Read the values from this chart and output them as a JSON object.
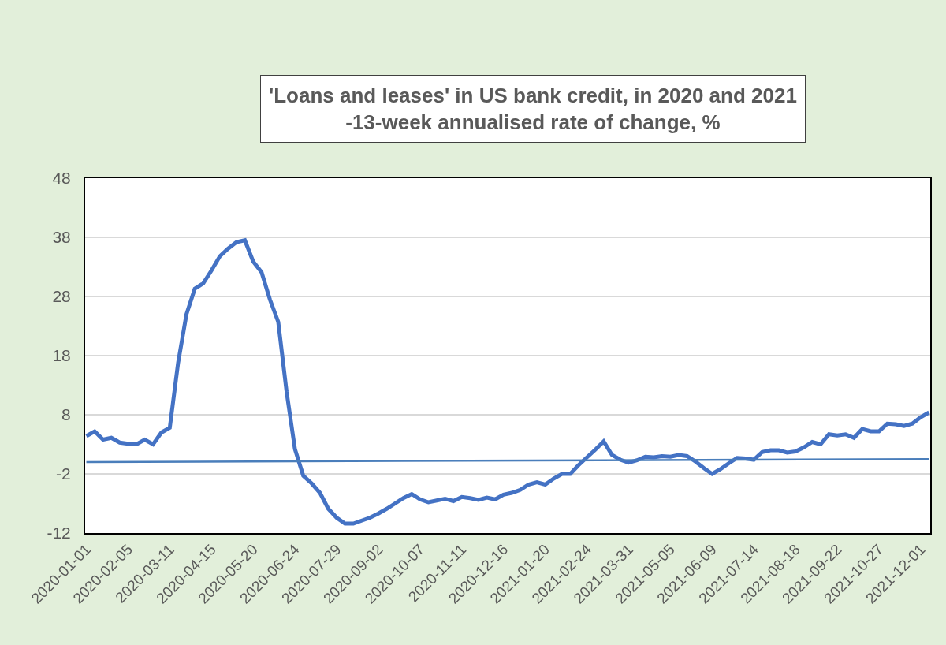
{
  "chart_data": {
    "type": "line",
    "title": "'Loans and leases' in US bank credit, in 2020 and 2021",
    "subtitle": "-13-week annualised rate of change, %",
    "x": [
      "2020-01-01",
      "2020-01-08",
      "2020-01-15",
      "2020-01-22",
      "2020-01-29",
      "2020-02-05",
      "2020-02-12",
      "2020-02-19",
      "2020-02-26",
      "2020-03-04",
      "2020-03-11",
      "2020-03-18",
      "2020-03-25",
      "2020-04-01",
      "2020-04-08",
      "2020-04-15",
      "2020-04-22",
      "2020-04-29",
      "2020-05-06",
      "2020-05-13",
      "2020-05-20",
      "2020-05-27",
      "2020-06-03",
      "2020-06-10",
      "2020-06-17",
      "2020-06-24",
      "2020-07-01",
      "2020-07-08",
      "2020-07-15",
      "2020-07-22",
      "2020-07-29",
      "2020-08-05",
      "2020-08-12",
      "2020-08-19",
      "2020-08-26",
      "2020-09-02",
      "2020-09-09",
      "2020-09-16",
      "2020-09-23",
      "2020-09-30",
      "2020-10-07",
      "2020-10-14",
      "2020-10-21",
      "2020-10-28",
      "2020-11-04",
      "2020-11-11",
      "2020-11-18",
      "2020-11-25",
      "2020-12-02",
      "2020-12-09",
      "2020-12-16",
      "2020-12-23",
      "2020-12-30",
      "2021-01-06",
      "2021-01-13",
      "2021-01-20",
      "2021-01-27",
      "2021-02-03",
      "2021-02-10",
      "2021-02-17",
      "2021-02-24",
      "2021-03-03",
      "2021-03-10",
      "2021-03-17",
      "2021-03-24",
      "2021-03-31",
      "2021-04-07",
      "2021-04-14",
      "2021-04-21",
      "2021-04-28",
      "2021-05-05",
      "2021-05-12",
      "2021-05-19",
      "2021-05-26",
      "2021-06-02",
      "2021-06-09",
      "2021-06-16",
      "2021-06-23",
      "2021-06-30",
      "2021-07-07",
      "2021-07-14",
      "2021-07-21",
      "2021-07-28",
      "2021-08-04",
      "2021-08-11",
      "2021-08-18",
      "2021-08-25",
      "2021-09-01",
      "2021-09-08",
      "2021-09-15",
      "2021-09-22",
      "2021-09-29",
      "2021-10-06",
      "2021-10-13",
      "2021-10-20",
      "2021-10-27",
      "2021-11-03",
      "2021-11-10",
      "2021-11-17",
      "2021-11-24",
      "2021-12-01",
      "2021-12-08"
    ],
    "series": [
      {
        "color": "#4472c4",
        "values": [
          4.4,
          5.2,
          3.8,
          4.1,
          3.3,
          3.1,
          3.0,
          3.8,
          3.0,
          5.0,
          5.8,
          16.8,
          25.0,
          29.3,
          30.2,
          32.4,
          34.8,
          36.1,
          37.2,
          37.5,
          33.9,
          32.1,
          27.5,
          23.7,
          11.9,
          2.2,
          -2.3,
          -3.6,
          -5.2,
          -7.9,
          -9.4,
          -10.4,
          -10.4,
          -9.9,
          -9.4,
          -8.7,
          -7.9,
          -7.0,
          -6.1,
          -5.4,
          -6.3,
          -6.8,
          -6.5,
          -6.2,
          -6.6,
          -5.9,
          -6.1,
          -6.4,
          -6.0,
          -6.3,
          -5.5,
          -5.2,
          -4.7,
          -3.8,
          -3.4,
          -3.8,
          -2.8,
          -2.0,
          -2.0,
          -0.5,
          0.8,
          2.1,
          3.5,
          1.2,
          0.4,
          -0.1,
          0.3,
          0.9,
          0.8,
          1.0,
          0.9,
          1.2,
          1.0,
          0.1,
          -1.0,
          -2.0,
          -1.2,
          -0.2,
          0.7,
          0.6,
          0.4,
          1.7,
          2.0,
          2.0,
          1.6,
          1.8,
          2.5,
          3.4,
          3.0,
          4.7,
          4.5,
          4.7,
          4.1,
          5.6,
          5.2,
          5.2,
          6.5,
          6.4,
          6.1,
          6.5,
          7.6,
          8.4
        ]
      },
      {
        "type": "line",
        "color": "#4a7ebb",
        "x": [
          "2020-01-01",
          "2021-12-08"
        ],
        "values": [
          0.0,
          0.5
        ]
      }
    ],
    "xlim": [
      "2019-12-31",
      "2021-12-09"
    ],
    "xticks": [
      "2020-01-01",
      "2020-02-05",
      "2020-03-11",
      "2020-04-15",
      "2020-05-20",
      "2020-06-24",
      "2020-07-29",
      "2020-09-02",
      "2020-10-07",
      "2020-11-11",
      "2020-12-16",
      "2021-01-20",
      "2021-02-24",
      "2021-03-31",
      "2021-05-05",
      "2021-06-09",
      "2021-07-14",
      "2021-08-18",
      "2021-09-22",
      "2021-10-27",
      "2021-12-01"
    ],
    "ylim": [
      -12,
      48
    ],
    "yticks": [
      -12,
      -2,
      8,
      18,
      28,
      38,
      48
    ],
    "grid": "y",
    "marker": "none",
    "line_style": "solid"
  }
}
